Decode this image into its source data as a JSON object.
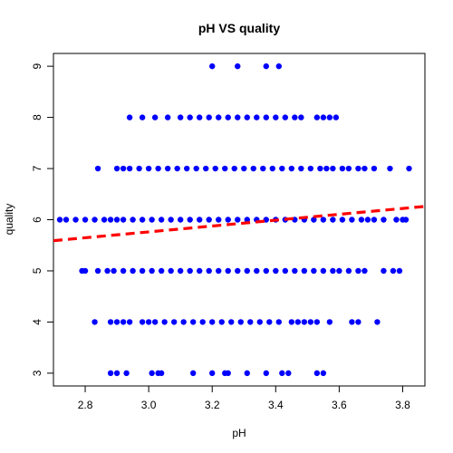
{
  "chart_data": {
    "type": "scatter",
    "title": "pH VS quality",
    "xlabel": "pH",
    "ylabel": "quality",
    "xlim": [
      2.7,
      3.87
    ],
    "ylim": [
      2.75,
      9.25
    ],
    "x_ticks": [
      2.8,
      3.0,
      3.2,
      3.4,
      3.6,
      3.8
    ],
    "x_tick_labels": [
      "2.8",
      "3.0",
      "3.2",
      "3.4",
      "3.6",
      "3.8"
    ],
    "y_ticks": [
      3,
      4,
      5,
      6,
      7,
      8,
      9
    ],
    "y_tick_labels": [
      "3",
      "4",
      "5",
      "6",
      "7",
      "8",
      "9"
    ],
    "grid": false,
    "point_color": "#0000ff",
    "series": [
      {
        "type": "points",
        "points_by_quality": {
          "9": [
            3.2,
            3.28,
            3.37,
            3.41
          ],
          "8": [
            2.94,
            2.98,
            3.02,
            3.06,
            3.1,
            3.13,
            3.16,
            3.19,
            3.22,
            3.25,
            3.28,
            3.31,
            3.34,
            3.37,
            3.4,
            3.43,
            3.46,
            3.48,
            3.53,
            3.55,
            3.57,
            3.59
          ],
          "7": [
            2.84,
            2.9,
            2.92,
            2.94,
            2.97,
            3.0,
            3.03,
            3.06,
            3.09,
            3.12,
            3.15,
            3.18,
            3.21,
            3.24,
            3.27,
            3.3,
            3.33,
            3.36,
            3.39,
            3.42,
            3.45,
            3.48,
            3.51,
            3.54,
            3.56,
            3.58,
            3.61,
            3.63,
            3.66,
            3.68,
            3.71,
            3.76,
            3.82
          ],
          "6": [
            2.72,
            2.74,
            2.77,
            2.8,
            2.83,
            2.86,
            2.88,
            2.9,
            2.92,
            2.95,
            2.98,
            3.01,
            3.04,
            3.07,
            3.1,
            3.13,
            3.16,
            3.19,
            3.22,
            3.25,
            3.28,
            3.31,
            3.34,
            3.37,
            3.4,
            3.43,
            3.46,
            3.49,
            3.52,
            3.55,
            3.58,
            3.61,
            3.64,
            3.67,
            3.69,
            3.71,
            3.74,
            3.78,
            3.8,
            3.81
          ],
          "5": [
            2.79,
            2.8,
            2.84,
            2.87,
            2.89,
            2.92,
            2.95,
            2.98,
            3.01,
            3.04,
            3.07,
            3.1,
            3.13,
            3.16,
            3.19,
            3.22,
            3.25,
            3.28,
            3.31,
            3.34,
            3.37,
            3.4,
            3.43,
            3.46,
            3.49,
            3.52,
            3.55,
            3.58,
            3.6,
            3.63,
            3.66,
            3.68,
            3.74,
            3.77,
            3.79
          ],
          "4": [
            2.83,
            2.88,
            2.9,
            2.92,
            2.94,
            2.98,
            3.0,
            3.02,
            3.05,
            3.08,
            3.11,
            3.14,
            3.17,
            3.2,
            3.23,
            3.26,
            3.29,
            3.32,
            3.35,
            3.38,
            3.41,
            3.45,
            3.47,
            3.49,
            3.51,
            3.53,
            3.57,
            3.64,
            3.66,
            3.72
          ],
          "3": [
            2.88,
            2.9,
            2.93,
            3.01,
            3.03,
            3.04,
            3.14,
            3.2,
            3.24,
            3.25,
            3.31,
            3.37,
            3.42,
            3.44,
            3.53,
            3.55
          ]
        }
      },
      {
        "type": "line",
        "style": "dashed",
        "color": "#ff0000",
        "x": [
          2.7,
          3.87
        ],
        "y": [
          5.59,
          6.26
        ]
      }
    ]
  }
}
